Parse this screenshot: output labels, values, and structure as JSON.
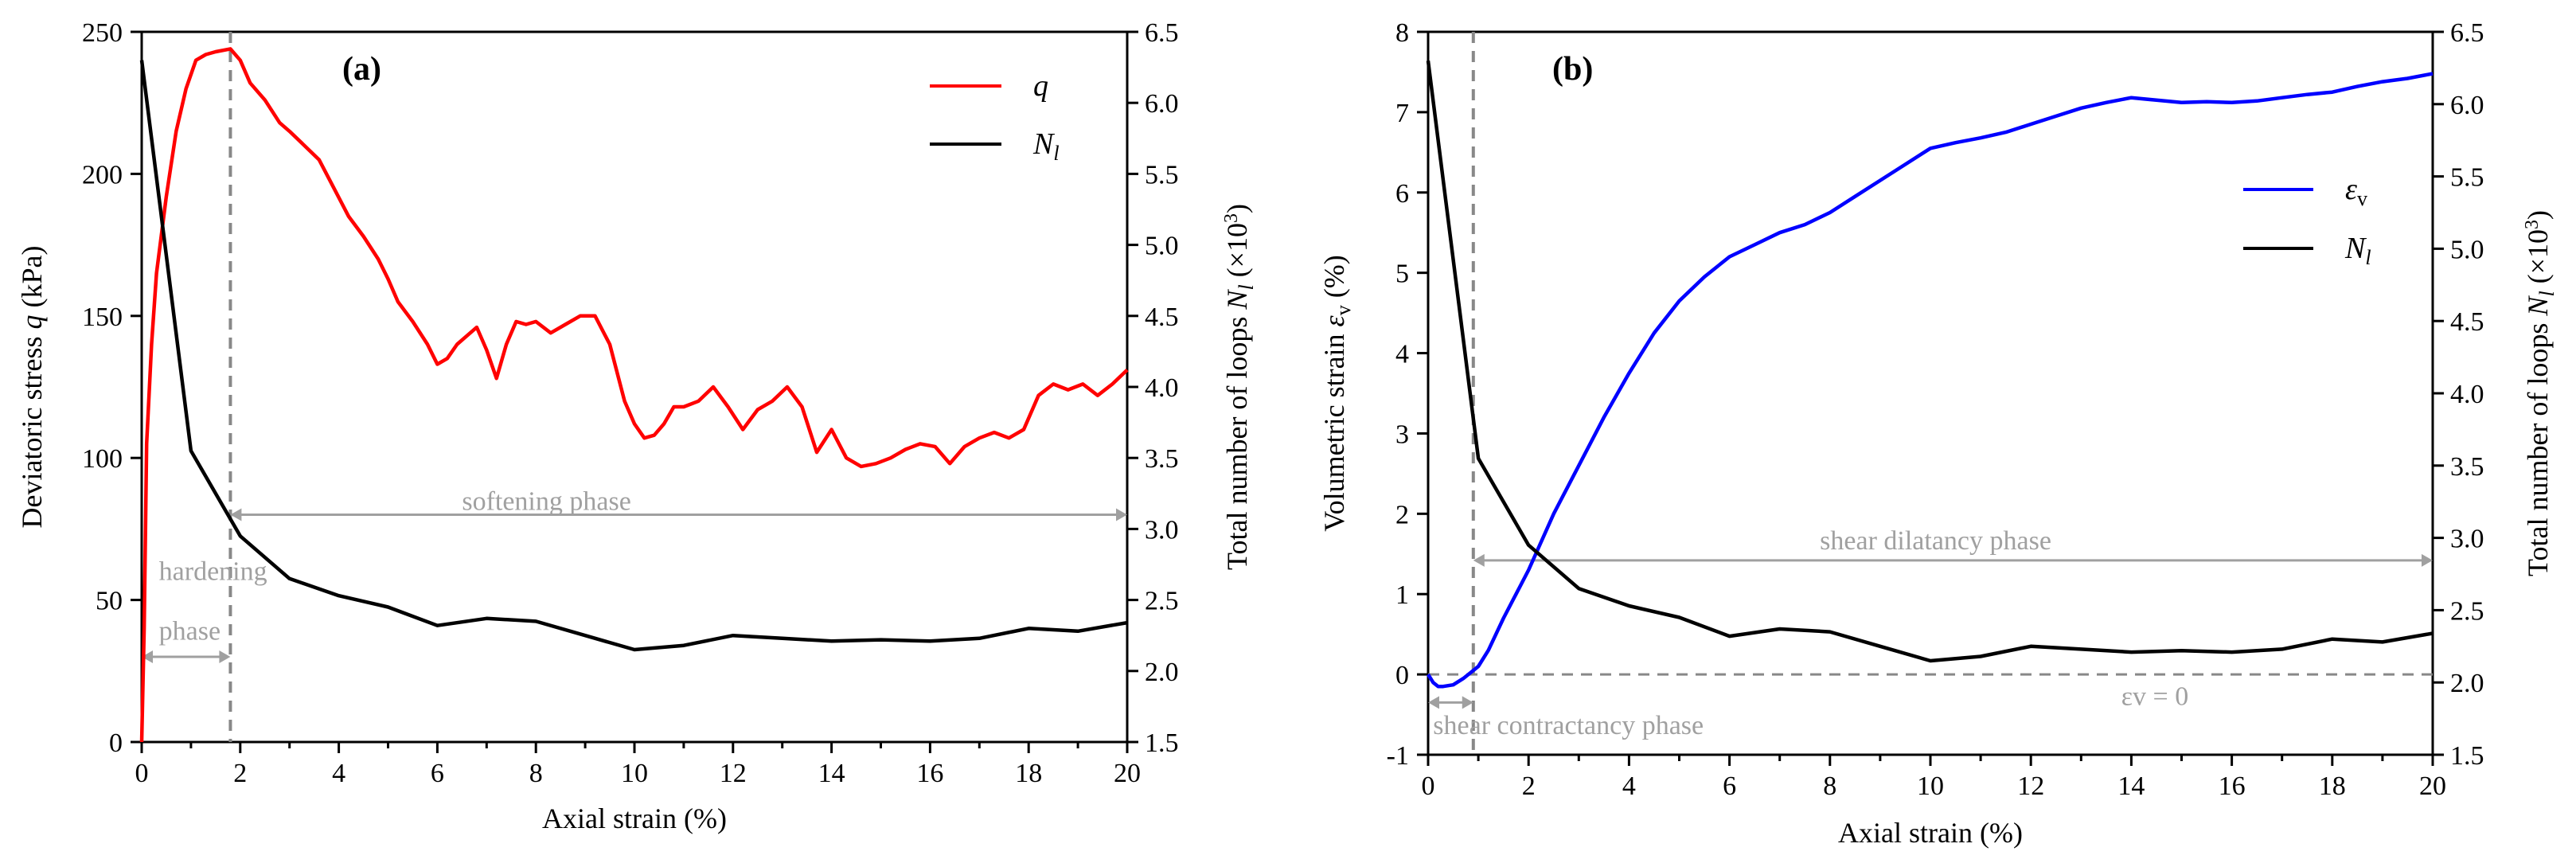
{
  "chart_data": [
    {
      "panel_label": "(a)",
      "type": "line",
      "xlabel": "Axial strain (%)",
      "ylabel_left": "Deviatoric stress  q  (kPa)",
      "ylabel_right": "Total number of loops  N_l  (×10³)",
      "xlim": [
        0,
        20
      ],
      "ylim_left": [
        0,
        250
      ],
      "ylim_right": [
        1.5,
        6.5
      ],
      "x_ticks": [
        "0",
        "2",
        "4",
        "6",
        "8",
        "10",
        "12",
        "14",
        "16",
        "18",
        "20"
      ],
      "y_ticks_left": [
        "0",
        "50",
        "100",
        "150",
        "200",
        "250"
      ],
      "y_ticks_right": [
        "1.5",
        "2.0",
        "2.5",
        "3.0",
        "3.5",
        "4.0",
        "4.5",
        "5.0",
        "5.5",
        "6.0",
        "6.5"
      ],
      "legend": [
        "q",
        "Nl"
      ],
      "series": [
        {
          "name": "q",
          "axis": "left",
          "color": "#ff0000",
          "x": [
            0,
            0.05,
            0.1,
            0.2,
            0.3,
            0.5,
            0.7,
            0.9,
            1.1,
            1.3,
            1.5,
            1.8,
            2.0,
            2.2,
            2.5,
            2.8,
            3.0,
            3.3,
            3.6,
            3.9,
            4.2,
            4.5,
            4.8,
            5.0,
            5.2,
            5.5,
            5.8,
            6.0,
            6.2,
            6.4,
            6.6,
            6.8,
            7.0,
            7.2,
            7.4,
            7.6,
            7.8,
            8.0,
            8.3,
            8.6,
            8.9,
            9.2,
            9.5,
            9.8,
            10.0,
            10.2,
            10.4,
            10.6,
            10.8,
            11.0,
            11.3,
            11.6,
            11.9,
            12.2,
            12.5,
            12.8,
            13.1,
            13.4,
            13.7,
            14.0,
            14.3,
            14.6,
            14.9,
            15.2,
            15.5,
            15.8,
            16.1,
            16.4,
            16.7,
            17.0,
            17.3,
            17.6,
            17.9,
            18.2,
            18.5,
            18.8,
            19.1,
            19.4,
            19.7,
            20.0
          ],
          "values": [
            0,
            40,
            105,
            140,
            165,
            192,
            215,
            230,
            240,
            242,
            243,
            244,
            240,
            232,
            226,
            218,
            215,
            210,
            205,
            195,
            185,
            178,
            170,
            163,
            155,
            148,
            140,
            133,
            135,
            140,
            143,
            146,
            138,
            128,
            140,
            148,
            147,
            148,
            144,
            147,
            150,
            150,
            140,
            120,
            112,
            107,
            108,
            112,
            118,
            118,
            120,
            125,
            118,
            110,
            117,
            120,
            125,
            118,
            102,
            110,
            100,
            97,
            98,
            100,
            103,
            105,
            104,
            98,
            104,
            107,
            109,
            107,
            110,
            122,
            126,
            124,
            126,
            122,
            126,
            131
          ]
        },
        {
          "name": "Nl",
          "axis": "right",
          "color": "#000000",
          "x": [
            0,
            1,
            2,
            3,
            4,
            5,
            6,
            7,
            8,
            9,
            10,
            11,
            12,
            13,
            14,
            15,
            16,
            17,
            18,
            19,
            20
          ],
          "values": [
            6.3,
            3.55,
            2.95,
            2.65,
            2.53,
            2.45,
            2.32,
            2.37,
            2.35,
            2.25,
            2.15,
            2.18,
            2.25,
            2.23,
            2.21,
            2.22,
            2.21,
            2.23,
            2.3,
            2.28,
            2.34
          ]
        }
      ],
      "annotations": [
        "hardening phase",
        "softening phase"
      ],
      "vline_x": 1.8
    },
    {
      "panel_label": "(b)",
      "type": "line",
      "xlabel": "Axial strain (%)",
      "ylabel_left": "Volumetric strain  εv  (%)",
      "ylabel_right": "Total number of loops  N_l  (×10³)",
      "xlim": [
        0,
        20
      ],
      "ylim_left": [
        -1,
        8
      ],
      "ylim_right": [
        1.5,
        6.5
      ],
      "x_ticks": [
        "0",
        "2",
        "4",
        "6",
        "8",
        "10",
        "12",
        "14",
        "16",
        "18",
        "20"
      ],
      "y_ticks_left": [
        "-1",
        "0",
        "1",
        "2",
        "3",
        "4",
        "5",
        "6",
        "7",
        "8"
      ],
      "y_ticks_right": [
        "1.5",
        "2.0",
        "2.5",
        "3.0",
        "3.5",
        "4.0",
        "4.5",
        "5.0",
        "5.5",
        "6.0",
        "6.5"
      ],
      "legend": [
        "εv",
        "Nl"
      ],
      "series": [
        {
          "name": "εv",
          "axis": "left",
          "color": "#0000ff",
          "x": [
            0,
            0.1,
            0.2,
            0.3,
            0.5,
            0.7,
            0.9,
            1.0,
            1.2,
            1.5,
            2.0,
            2.5,
            3.0,
            3.5,
            4.0,
            4.5,
            5.0,
            5.5,
            6.0,
            6.5,
            7.0,
            7.5,
            8.0,
            8.5,
            9.0,
            9.5,
            10.0,
            10.5,
            11.0,
            11.5,
            12.0,
            12.5,
            13.0,
            13.5,
            14.0,
            14.5,
            15.0,
            15.5,
            16.0,
            16.5,
            17.0,
            17.5,
            18.0,
            18.5,
            19.0,
            19.5,
            20.0
          ],
          "values": [
            0,
            -0.1,
            -0.15,
            -0.15,
            -0.13,
            -0.05,
            0.05,
            0.1,
            0.3,
            0.7,
            1.3,
            2.0,
            2.6,
            3.2,
            3.75,
            4.25,
            4.65,
            4.95,
            5.2,
            5.35,
            5.5,
            5.6,
            5.75,
            5.95,
            6.15,
            6.35,
            6.55,
            6.62,
            6.68,
            6.75,
            6.85,
            6.95,
            7.05,
            7.12,
            7.18,
            7.15,
            7.12,
            7.13,
            7.12,
            7.14,
            7.18,
            7.22,
            7.25,
            7.32,
            7.38,
            7.42,
            7.48
          ]
        },
        {
          "name": "Nl",
          "axis": "right",
          "color": "#000000",
          "x": [
            0,
            1,
            2,
            3,
            4,
            5,
            6,
            7,
            8,
            9,
            10,
            11,
            12,
            13,
            14,
            15,
            16,
            17,
            18,
            19,
            20
          ],
          "values": [
            6.3,
            3.55,
            2.95,
            2.65,
            2.53,
            2.45,
            2.32,
            2.37,
            2.35,
            2.25,
            2.15,
            2.18,
            2.25,
            2.23,
            2.21,
            2.22,
            2.21,
            2.23,
            2.3,
            2.28,
            2.34
          ]
        }
      ],
      "annotations": [
        "shear dilatancy phase",
        "shear contractancy phase",
        "εv = 0"
      ],
      "vline_x": 0.9
    }
  ]
}
